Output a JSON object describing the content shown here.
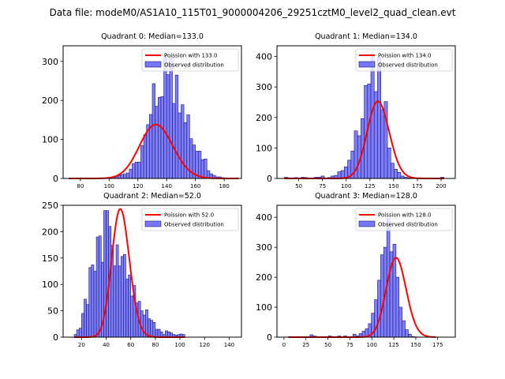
{
  "suptitle": "Data file: modeM0/AS1A10_115T01_9000004206_29251cztM0_level2_quad_clean.evt",
  "colors": {
    "bar_fill": "#7777ff",
    "bar_edge": "#1a1a66",
    "poisson_line": "#ff0000"
  },
  "chart_data": [
    {
      "type": "bar",
      "title": "Quadrant 0: Median=133.0",
      "median": 133.0,
      "legend": [
        "Poission with 133.0",
        "Observed distribution"
      ],
      "legend_position": "top-right",
      "xlim": [
        68,
        192
      ],
      "ylim": [
        0,
        340
      ],
      "xticks": [
        80,
        100,
        120,
        140,
        160,
        180
      ],
      "yticks": [
        0,
        100,
        200,
        300
      ],
      "bin_width": 2,
      "bin_start": 72,
      "counts": [
        0,
        0,
        0,
        0,
        0,
        0,
        0,
        1,
        1,
        0,
        0,
        1,
        1,
        1,
        2,
        3,
        4,
        8,
        10,
        12,
        14,
        24,
        38,
        42,
        42,
        84,
        112,
        138,
        164,
        243,
        185,
        208,
        210,
        320,
        266,
        312,
        192,
        265,
        168,
        189,
        143,
        163,
        102,
        86,
        70,
        70,
        48,
        50,
        20,
        12,
        8,
        4,
        4,
        2,
        1,
        1,
        1,
        0,
        0
      ],
      "poisson_mean": 133.0,
      "poisson_scale": 4000
    },
    {
      "type": "bar",
      "title": "Quadrant 1: Median=134.0",
      "median": 134.0,
      "legend": [
        "Poission with 134.0",
        "Observed distribution"
      ],
      "legend_position": "top-right",
      "xlim": [
        27,
        215
      ],
      "ylim": [
        0,
        435
      ],
      "xticks": [
        50,
        75,
        100,
        125,
        150,
        175,
        200
      ],
      "yticks": [
        0,
        100,
        200,
        300,
        400
      ],
      "bin_width": 3.5,
      "bin_start": 35,
      "counts": [
        4,
        2,
        2,
        3,
        2,
        4,
        3,
        1,
        2,
        4,
        4,
        8,
        2,
        3,
        8,
        10,
        22,
        26,
        38,
        60,
        90,
        156,
        140,
        196,
        305,
        310,
        408,
        285,
        396,
        226,
        252,
        100,
        50,
        30,
        20,
        8,
        4,
        2,
        1,
        1,
        0,
        0,
        1,
        1,
        0,
        0,
        0,
        4
      ],
      "poisson_mean": 134.0,
      "poisson_scale": 4200
    },
    {
      "type": "bar",
      "title": "Quadrant 2: Median=52.0",
      "median": 52.0,
      "legend": [
        "Poission with 52.0",
        "Observed distribution"
      ],
      "legend_position": "top-right",
      "xlim": [
        5,
        150
      ],
      "ylim": [
        0,
        250
      ],
      "xticks": [
        20,
        40,
        60,
        80,
        100,
        120,
        140
      ],
      "yticks": [
        0,
        50,
        100,
        150,
        200,
        250
      ],
      "bin_width": 2,
      "bin_start": 14,
      "counts": [
        5,
        14,
        17,
        45,
        72,
        62,
        132,
        137,
        125,
        190,
        192,
        142,
        240,
        240,
        210,
        174,
        135,
        175,
        135,
        153,
        157,
        110,
        118,
        78,
        98,
        65,
        68,
        50,
        42,
        52,
        35,
        32,
        28,
        15,
        15,
        10,
        5,
        12,
        10,
        8,
        5,
        4,
        5,
        6,
        5
      ],
      "poisson_mean": 52.0,
      "poisson_scale": 4400
    },
    {
      "type": "bar",
      "title": "Quadrant 3: Median=128.0",
      "median": 128.0,
      "legend": [
        "Poission with 128.0",
        "Observed distribution"
      ],
      "legend_position": "top-right",
      "xlim": [
        -8,
        195
      ],
      "ylim": [
        0,
        440
      ],
      "xticks": [
        0,
        25,
        50,
        75,
        100,
        125,
        150,
        175
      ],
      "yticks": [
        0,
        100,
        200,
        300,
        400
      ],
      "bin_width": 3.5,
      "bin_start": 5,
      "counts": [
        1,
        0,
        0,
        0,
        0,
        0,
        2,
        8,
        4,
        0,
        0,
        0,
        2,
        4,
        2,
        2,
        4,
        0,
        4,
        0,
        2,
        10,
        4,
        12,
        20,
        28,
        45,
        80,
        125,
        190,
        275,
        300,
        395,
        285,
        310,
        200,
        100,
        55,
        25,
        10,
        2,
        1,
        0,
        0,
        0,
        0,
        0,
        1
      ],
      "poisson_mean": 128.0,
      "poisson_scale": 4300
    }
  ]
}
